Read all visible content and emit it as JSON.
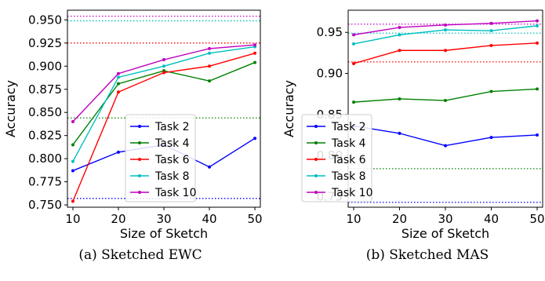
{
  "chart_data": [
    {
      "type": "line",
      "caption": "(a) Sketched EWC",
      "xlabel": "Size of Sketch",
      "ylabel": "Accuracy",
      "x": [
        10,
        20,
        30,
        40,
        50
      ],
      "xlim": [
        8.8,
        51.2
      ],
      "ylim": [
        0.7475,
        0.9605
      ],
      "yticks": [
        "0.750",
        "0.775",
        "0.800",
        "0.825",
        "0.850",
        "0.875",
        "0.900",
        "0.925",
        "0.950"
      ],
      "xticks": [
        "10",
        "20",
        "30",
        "40",
        "50"
      ],
      "legend": "center-right",
      "series": [
        {
          "name": "Task 2",
          "color": "#0000ff",
          "values": [
            0.787,
            0.807,
            0.815,
            0.791,
            0.822
          ],
          "baseline": 0.757
        },
        {
          "name": "Task 4",
          "color": "#008000",
          "values": [
            0.815,
            0.881,
            0.895,
            0.884,
            0.904
          ],
          "baseline": 0.844
        },
        {
          "name": "Task 6",
          "color": "#ff0000",
          "values": [
            0.754,
            0.872,
            0.893,
            0.9,
            0.914
          ],
          "baseline": 0.925
        },
        {
          "name": "Task 8",
          "color": "#00bfbf",
          "values": [
            0.797,
            0.888,
            0.9,
            0.914,
            0.921
          ],
          "baseline": 0.949
        },
        {
          "name": "Task 10",
          "color": "#bf00bf",
          "values": [
            0.84,
            0.892,
            0.907,
            0.919,
            0.923
          ],
          "baseline": 0.954
        }
      ]
    },
    {
      "type": "line",
      "caption": "(b) Sketched MAS",
      "xlabel": "Size of Sketch",
      "ylabel": "Accuracy",
      "x": [
        10,
        20,
        30,
        40,
        50
      ],
      "xlim": [
        8.8,
        51.2
      ],
      "ylim": [
        0.737,
        0.977
      ],
      "yticks": [
        "0.75",
        "0.80",
        "0.85",
        "0.90",
        "0.95"
      ],
      "xticks": [
        "10",
        "20",
        "30",
        "40",
        "50"
      ],
      "legend": "lower-left",
      "series": [
        {
          "name": "Task 2",
          "color": "#0000ff",
          "values": [
            0.836,
            0.827,
            0.812,
            0.822,
            0.825
          ],
          "baseline": 0.743
        },
        {
          "name": "Task 4",
          "color": "#008000",
          "values": [
            0.865,
            0.869,
            0.867,
            0.878,
            0.881
          ],
          "baseline": 0.784
        },
        {
          "name": "Task 6",
          "color": "#ff0000",
          "values": [
            0.912,
            0.928,
            0.928,
            0.934,
            0.937
          ],
          "baseline": 0.914
        },
        {
          "name": "Task 8",
          "color": "#00bfbf",
          "values": [
            0.936,
            0.947,
            0.953,
            0.952,
            0.958
          ],
          "baseline": 0.949
        },
        {
          "name": "Task 10",
          "color": "#bf00bf",
          "values": [
            0.947,
            0.956,
            0.959,
            0.961,
            0.964
          ],
          "baseline": 0.96
        }
      ]
    }
  ]
}
